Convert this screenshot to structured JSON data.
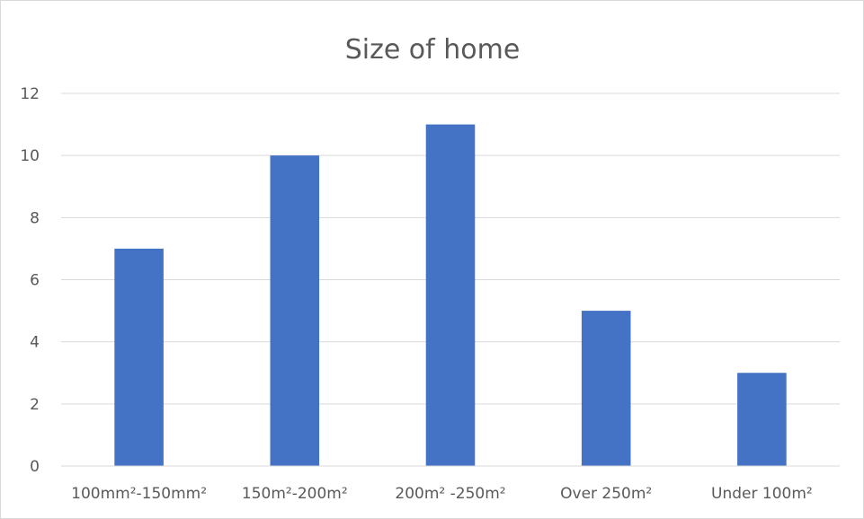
{
  "chart_data": {
    "type": "bar",
    "title": "Size of home",
    "xlabel": "",
    "ylabel": "",
    "categories": [
      "100mm²-150mm²",
      "150m²-200m²",
      "200m² -250m²",
      "Over 250m²",
      "Under 100m²"
    ],
    "values": [
      7,
      10,
      11,
      5,
      3
    ],
    "ylim": [
      0,
      12
    ],
    "yticks": [
      0,
      2,
      4,
      6,
      8,
      10,
      12
    ],
    "grid": true,
    "legend": "none",
    "colors": {
      "bar": "#4472c4",
      "grid": "#d9d9d9",
      "text": "#595959"
    }
  }
}
